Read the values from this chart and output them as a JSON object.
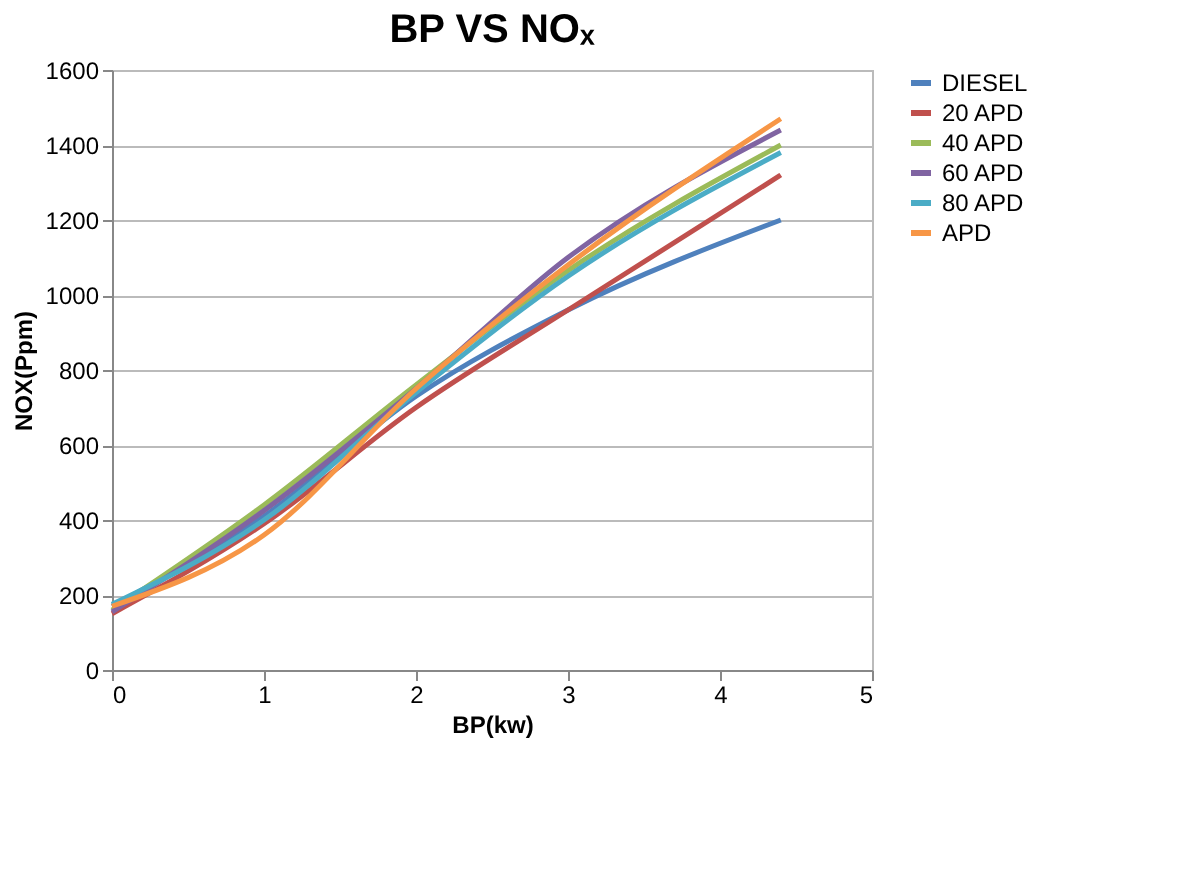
{
  "chart_data": {
    "type": "line",
    "title": "BP VS NOₓ",
    "xlabel": "BP(kw)",
    "ylabel": "NOX(Ppm)",
    "x": [
      0,
      1,
      2,
      3,
      4.4
    ],
    "series": [
      {
        "name": "DIESEL",
        "color": "#4f81bd",
        "values": [
          170,
          410,
          730,
          960,
          1200
        ]
      },
      {
        "name": "20 APD",
        "color": "#c0504d",
        "values": [
          150,
          390,
          700,
          960,
          1320
        ]
      },
      {
        "name": "40 APD",
        "color": "#9bbb59",
        "values": [
          160,
          440,
          760,
          1065,
          1400
        ]
      },
      {
        "name": "60 APD",
        "color": "#8064a2",
        "values": [
          155,
          425,
          750,
          1100,
          1440
        ]
      },
      {
        "name": "80 APD",
        "color": "#4bacc6",
        "values": [
          175,
          400,
          740,
          1050,
          1380
        ]
      },
      {
        "name": "APD",
        "color": "#f79646",
        "values": [
          170,
          360,
          750,
          1080,
          1470
        ]
      }
    ],
    "xlim": [
      0,
      5
    ],
    "xticks": [
      0,
      1,
      2,
      3,
      4,
      5
    ],
    "ylim": [
      0,
      1600
    ],
    "yticks": [
      0,
      200,
      400,
      600,
      800,
      1000,
      1200,
      1400,
      1600
    ],
    "grid": "y",
    "legend": "right",
    "marker": "none",
    "line_style": "solid"
  }
}
